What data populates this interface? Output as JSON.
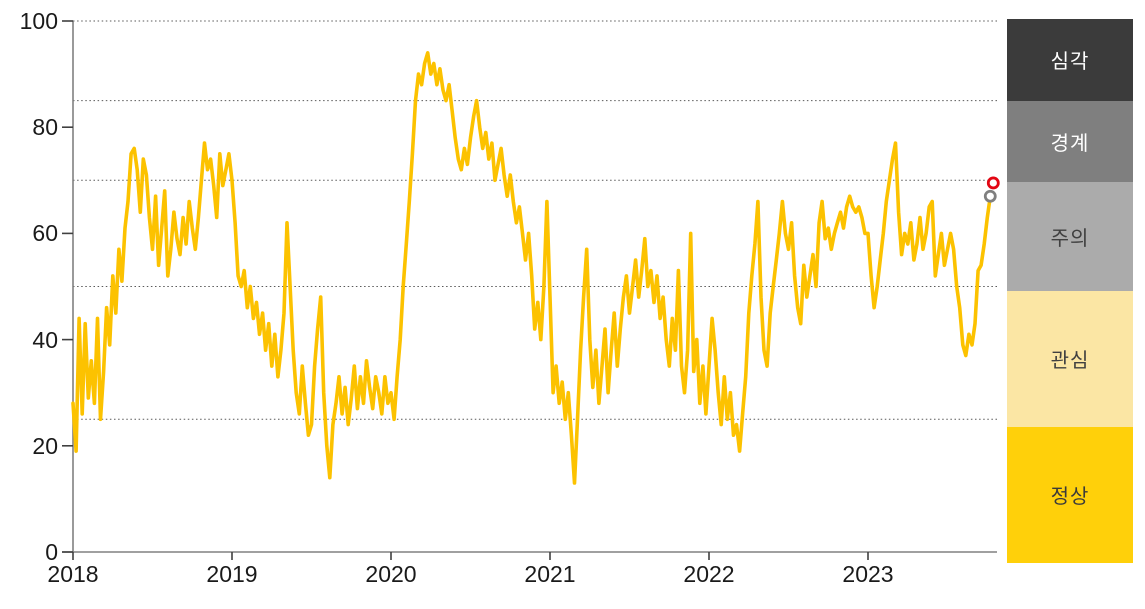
{
  "chart_data": {
    "type": "line",
    "title": "",
    "x_axis": {
      "ticks": [
        "2018",
        "2019",
        "2020",
        "2021",
        "2022",
        "2023"
      ],
      "tick_values": [
        2018,
        2019,
        2020,
        2021,
        2022,
        2023
      ]
    },
    "y_axis": {
      "ticks": [
        "100",
        "80",
        "60",
        "40",
        "20",
        "0"
      ],
      "tick_values": [
        100,
        80,
        60,
        40,
        20,
        0
      ],
      "min": 0,
      "max": 100
    },
    "gridline_values": [
      25,
      50,
      70,
      85,
      100
    ],
    "grid_style": "dotted",
    "legend_position": "right-band-column",
    "series": [
      {
        "name": "risk-index",
        "color": "#FCC200",
        "x_start": 2018,
        "x_step_years": 0.0192308,
        "values": [
          28,
          19,
          44,
          26,
          43,
          29,
          36,
          28,
          44,
          25,
          34,
          46,
          39,
          52,
          45,
          57,
          51,
          61,
          66,
          75,
          76,
          72,
          64,
          74,
          71,
          63,
          57,
          67,
          54,
          61,
          68,
          52,
          57,
          64,
          59,
          56,
          63,
          58,
          66,
          61,
          57,
          63,
          70,
          77,
          72,
          74,
          69,
          63,
          75,
          69,
          72,
          75,
          70,
          62,
          52,
          50,
          53,
          46,
          50,
          44,
          47,
          41,
          45,
          38,
          43,
          35,
          41,
          33,
          38,
          45,
          62,
          50,
          38,
          30,
          26,
          35,
          28,
          22,
          24,
          35,
          42,
          48,
          30,
          20,
          14,
          24,
          28,
          33,
          26,
          31,
          24,
          29,
          35,
          27,
          33,
          28,
          36,
          31,
          27,
          33,
          30,
          26,
          33,
          28,
          30,
          25,
          33,
          40,
          50,
          58,
          66,
          75,
          85,
          90,
          88,
          92,
          94,
          90,
          92,
          88,
          91,
          87,
          85,
          88,
          83,
          78,
          74,
          72,
          76,
          73,
          78,
          82,
          85,
          80,
          76,
          79,
          74,
          77,
          70,
          73,
          76,
          71,
          67,
          71,
          66,
          62,
          65,
          60,
          55,
          60,
          52,
          42,
          47,
          40,
          50,
          66,
          48,
          30,
          35,
          28,
          32,
          25,
          30,
          22,
          13,
          25,
          38,
          48,
          57,
          40,
          31,
          38,
          28,
          35,
          42,
          30,
          38,
          45,
          35,
          42,
          48,
          52,
          45,
          50,
          55,
          48,
          53,
          59,
          50,
          53,
          47,
          52,
          44,
          48,
          40,
          35,
          44,
          38,
          53,
          35,
          30,
          38,
          60,
          34,
          40,
          28,
          35,
          26,
          35,
          44,
          38,
          30,
          24,
          33,
          25,
          30,
          22,
          24,
          19,
          26,
          33,
          45,
          52,
          58,
          66,
          48,
          38,
          35,
          45,
          50,
          55,
          60,
          66,
          60,
          57,
          62,
          52,
          46,
          43,
          54,
          48,
          52,
          56,
          50,
          62,
          66,
          59,
          61,
          57,
          60,
          62,
          64,
          61,
          65,
          67,
          65,
          64,
          65,
          63,
          60,
          60,
          52,
          46,
          50,
          55,
          60,
          66,
          70,
          74,
          77,
          64,
          56,
          60,
          58,
          62,
          55,
          58,
          63,
          57,
          60,
          65,
          66,
          52,
          56,
          60,
          54,
          57,
          60,
          57,
          50,
          46,
          39,
          37,
          41,
          39,
          43,
          53,
          54,
          58,
          63,
          67
        ]
      }
    ],
    "end_markers": [
      {
        "name": "previous-point",
        "x": 2023.769,
        "value": 67.0,
        "color": "#7F7F7F"
      },
      {
        "name": "latest-point",
        "x": 2023.788,
        "value": 69.5,
        "color": "#E30613"
      }
    ]
  },
  "legend": {
    "bands": [
      {
        "key": "severe",
        "label": "심각",
        "range": [
          85,
          100
        ],
        "color": "#3B3B3B",
        "text_color": "#FFFFFF"
      },
      {
        "key": "alert",
        "label": "경계",
        "range": [
          70,
          85
        ],
        "color": "#7F7F7F",
        "text_color": "#FFFFFF"
      },
      {
        "key": "caution",
        "label": "주의",
        "range": [
          50,
          70
        ],
        "color": "#ABABAB",
        "text_color": "#404040"
      },
      {
        "key": "interest",
        "label": "관심",
        "range": [
          25,
          50
        ],
        "color": "#FBE6A4",
        "text_color": "#404040"
      },
      {
        "key": "normal",
        "label": "정상",
        "range": [
          0,
          25
        ],
        "color": "#FFD00A",
        "text_color": "#3A3A3A"
      }
    ]
  },
  "colors": {
    "background": "#FFFFFF",
    "axis": "#808080",
    "tick": "#404040",
    "gridline": "#595959",
    "tick_label": "#1A1A1A",
    "line": "#FCC200"
  }
}
